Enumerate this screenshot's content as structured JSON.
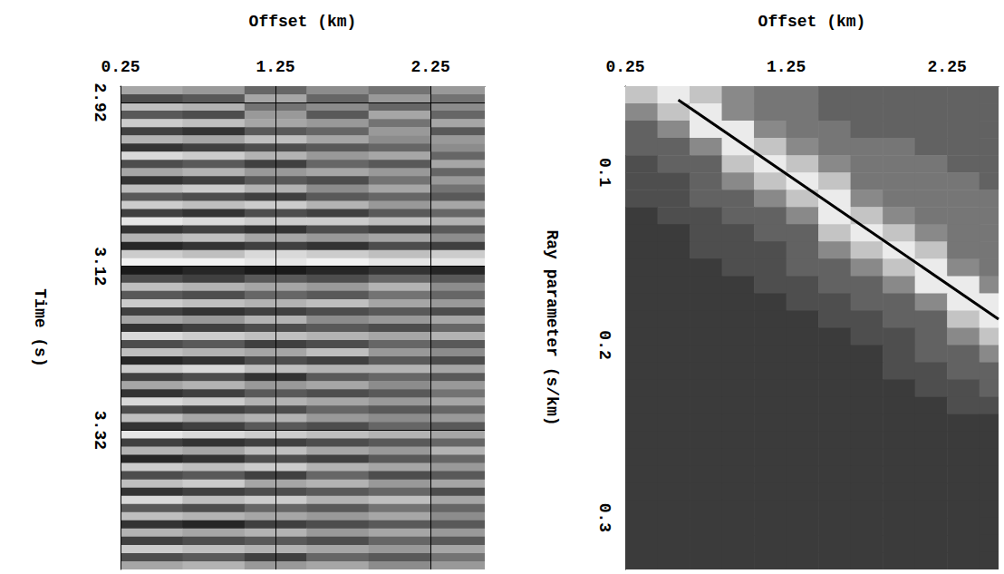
{
  "chart_data": [
    {
      "type": "heatmap",
      "x_label": "Offset (km)",
      "y_label": "Time (s)",
      "xlim": [
        0.25,
        2.6
      ],
      "xticks": [
        0.25,
        1.25,
        2.25
      ],
      "ylim": [
        2.9,
        3.49
      ],
      "yticks": [
        2.92,
        3.12,
        3.32
      ],
      "grid": true,
      "cells": {
        "vrange": [
          -10,
          10
        ],
        "x_edges": [
          0.25,
          0.65,
          1.05,
          1.45,
          1.85,
          2.25,
          2.6
        ],
        "y_edges": [
          2.9,
          2.91,
          2.92,
          2.93,
          2.94,
          2.95,
          2.96,
          2.97,
          2.98,
          2.99,
          3.0,
          3.01,
          3.02,
          3.03,
          3.04,
          3.05,
          3.06,
          3.07,
          3.08,
          3.09,
          3.1,
          3.11,
          3.12,
          3.13,
          3.14,
          3.15,
          3.16,
          3.17,
          3.18,
          3.19,
          3.2,
          3.21,
          3.22,
          3.23,
          3.24,
          3.25,
          3.26,
          3.27,
          3.28,
          3.29,
          3.3,
          3.31,
          3.32,
          3.33,
          3.34,
          3.35,
          3.36,
          3.37,
          3.38,
          3.39,
          3.4,
          3.41,
          3.42,
          3.43,
          3.44,
          3.45,
          3.46,
          3.47,
          3.48,
          3.49
        ],
        "values": [
          [
            3,
            2,
            -2,
            1,
            -1,
            2
          ],
          [
            -4,
            -3,
            3,
            -2,
            2,
            -1
          ],
          [
            5,
            4,
            -1,
            1,
            -2,
            1
          ],
          [
            -3,
            -4,
            2,
            -3,
            3,
            -2
          ],
          [
            6,
            5,
            3,
            2,
            -1,
            3
          ],
          [
            -5,
            -6,
            -3,
            -2,
            2,
            -3
          ],
          [
            4,
            3,
            5,
            3,
            1,
            2
          ],
          [
            -6,
            -5,
            -4,
            -3,
            -2,
            1
          ],
          [
            7,
            6,
            4,
            2,
            3,
            -2
          ],
          [
            -4,
            -3,
            -5,
            -2,
            -3,
            3
          ],
          [
            3,
            4,
            2,
            3,
            2,
            -2
          ],
          [
            -6,
            -5,
            -3,
            -4,
            -1,
            2
          ],
          [
            5,
            6,
            4,
            1,
            3,
            -1
          ],
          [
            -3,
            -4,
            -5,
            -3,
            -2,
            -3
          ],
          [
            6,
            5,
            6,
            4,
            2,
            3
          ],
          [
            -5,
            -6,
            -4,
            -5,
            -3,
            -2
          ],
          [
            8,
            7,
            6,
            6,
            5,
            4
          ],
          [
            -6,
            -5,
            -6,
            -4,
            -5,
            -3
          ],
          [
            4,
            5,
            3,
            2,
            3,
            1
          ],
          [
            -7,
            -6,
            -5,
            -6,
            -4,
            -5
          ],
          [
            6,
            5,
            7,
            6,
            5,
            6
          ],
          [
            9,
            9,
            8,
            9,
            8,
            8
          ],
          [
            -8,
            -7,
            -8,
            -7,
            -6,
            -7
          ],
          [
            -4,
            -5,
            -3,
            -4,
            -2,
            -3
          ],
          [
            5,
            4,
            3,
            2,
            4,
            1
          ],
          [
            -3,
            -4,
            -2,
            -3,
            -1,
            -2
          ],
          [
            6,
            5,
            4,
            5,
            3,
            2
          ],
          [
            -5,
            -6,
            -5,
            -4,
            -3,
            -4
          ],
          [
            3,
            2,
            4,
            1,
            2,
            3
          ],
          [
            -6,
            -5,
            -4,
            -3,
            -4,
            -2
          ],
          [
            7,
            6,
            5,
            4,
            3,
            4
          ],
          [
            -4,
            -3,
            -5,
            -4,
            -2,
            -3
          ],
          [
            5,
            4,
            3,
            5,
            2,
            1
          ],
          [
            -7,
            -6,
            -4,
            -5,
            -3,
            -4
          ],
          [
            6,
            7,
            5,
            4,
            4,
            3
          ],
          [
            -5,
            -4,
            -6,
            -3,
            -2,
            -3
          ],
          [
            3,
            4,
            2,
            3,
            1,
            2
          ],
          [
            -6,
            -5,
            -3,
            -4,
            -3,
            -1
          ],
          [
            7,
            6,
            4,
            3,
            2,
            3
          ],
          [
            -4,
            -5,
            -4,
            -2,
            -3,
            -2
          ],
          [
            5,
            3,
            4,
            2,
            1,
            2
          ],
          [
            -6,
            -5,
            -3,
            -4,
            -2,
            -3
          ],
          [
            8,
            7,
            6,
            5,
            4,
            3
          ],
          [
            -5,
            -6,
            -5,
            -4,
            -3,
            -2
          ],
          [
            4,
            3,
            5,
            3,
            2,
            4
          ],
          [
            -7,
            -6,
            -4,
            -5,
            -3,
            -2
          ],
          [
            6,
            5,
            6,
            4,
            3,
            2
          ],
          [
            -4,
            -3,
            -5,
            -2,
            -4,
            -3
          ],
          [
            5,
            6,
            3,
            4,
            2,
            3
          ],
          [
            -6,
            -5,
            -4,
            -3,
            -2,
            -4
          ],
          [
            7,
            5,
            6,
            4,
            5,
            3
          ],
          [
            -3,
            -4,
            -2,
            -3,
            -1,
            -2
          ],
          [
            5,
            4,
            3,
            2,
            3,
            1
          ],
          [
            -6,
            -7,
            -5,
            -4,
            -3,
            -3
          ],
          [
            4,
            3,
            4,
            2,
            3,
            2
          ],
          [
            -5,
            -4,
            -3,
            -4,
            -2,
            -3
          ],
          [
            6,
            5,
            4,
            3,
            2,
            3
          ],
          [
            -4,
            -3,
            -5,
            -2,
            -3,
            -1
          ],
          [
            3,
            4,
            2,
            3,
            1,
            2
          ]
        ]
      }
    },
    {
      "type": "heatmap",
      "x_label": "Offset (km)",
      "y_label": "Ray parameter (s/km)",
      "xlim": [
        0.25,
        2.57
      ],
      "xticks": [
        0.25,
        1.25,
        2.25
      ],
      "ylim": [
        0.05,
        0.33
      ],
      "yticks": [
        0.1,
        0.2,
        0.3
      ],
      "grid": false,
      "cells": {
        "vrange": [
          -3,
          10
        ],
        "x_edges": [
          0.25,
          0.45,
          0.65,
          0.85,
          1.05,
          1.25,
          1.45,
          1.65,
          1.85,
          2.05,
          2.25,
          2.45,
          2.57
        ],
        "y_edges": [
          0.05,
          0.06,
          0.07,
          0.08,
          0.09,
          0.1,
          0.11,
          0.12,
          0.13,
          0.14,
          0.15,
          0.16,
          0.17,
          0.18,
          0.19,
          0.2,
          0.21,
          0.22,
          0.23,
          0.24,
          0.25,
          0.26,
          0.27,
          0.28,
          0.29,
          0.3,
          0.31,
          0.32,
          0.33
        ],
        "values": [
          [
            7,
            9,
            7,
            4,
            3,
            3,
            2,
            2,
            2,
            2,
            2,
            2
          ],
          [
            4,
            7,
            9,
            4,
            3,
            3,
            2,
            2,
            2,
            2,
            2,
            2
          ],
          [
            2,
            4,
            9,
            9,
            4,
            3,
            3,
            2,
            2,
            2,
            2,
            2
          ],
          [
            2,
            2,
            4,
            9,
            7,
            4,
            3,
            3,
            3,
            2,
            2,
            2
          ],
          [
            1,
            2,
            2,
            7,
            9,
            7,
            4,
            3,
            3,
            3,
            2,
            2
          ],
          [
            1,
            1,
            2,
            4,
            7,
            9,
            7,
            3,
            3,
            3,
            3,
            2
          ],
          [
            1,
            1,
            2,
            2,
            4,
            7,
            9,
            4,
            3,
            3,
            3,
            3
          ],
          [
            0,
            1,
            1,
            2,
            2,
            4,
            9,
            7,
            4,
            3,
            3,
            3
          ],
          [
            0,
            0,
            1,
            1,
            2,
            2,
            7,
            9,
            7,
            4,
            3,
            3
          ],
          [
            0,
            0,
            1,
            1,
            1,
            2,
            4,
            7,
            9,
            7,
            3,
            3
          ],
          [
            0,
            0,
            0,
            1,
            1,
            2,
            2,
            4,
            7,
            9,
            4,
            3
          ],
          [
            0,
            0,
            0,
            0,
            1,
            1,
            2,
            2,
            4,
            9,
            9,
            4
          ],
          [
            0,
            0,
            0,
            0,
            0,
            1,
            1,
            2,
            2,
            4,
            9,
            9
          ],
          [
            0,
            0,
            0,
            0,
            0,
            0,
            1,
            1,
            2,
            2,
            7,
            9
          ],
          [
            0,
            0,
            0,
            0,
            0,
            0,
            0,
            1,
            1,
            2,
            4,
            7
          ],
          [
            0,
            0,
            0,
            0,
            0,
            0,
            0,
            0,
            1,
            2,
            2,
            4
          ],
          [
            0,
            0,
            0,
            0,
            0,
            0,
            0,
            0,
            1,
            1,
            2,
            2
          ],
          [
            0,
            0,
            0,
            0,
            0,
            0,
            0,
            0,
            0,
            1,
            1,
            2
          ],
          [
            0,
            0,
            0,
            0,
            0,
            0,
            0,
            0,
            0,
            0,
            1,
            1
          ],
          [
            0,
            0,
            0,
            0,
            0,
            0,
            0,
            0,
            0,
            0,
            0,
            0
          ],
          [
            0,
            0,
            0,
            0,
            0,
            0,
            0,
            0,
            0,
            0,
            0,
            0
          ],
          [
            0,
            0,
            0,
            0,
            0,
            0,
            0,
            0,
            0,
            0,
            0,
            0
          ],
          [
            0,
            0,
            0,
            0,
            0,
            0,
            0,
            0,
            0,
            0,
            0,
            0
          ],
          [
            0,
            0,
            0,
            0,
            0,
            0,
            0,
            0,
            0,
            0,
            0,
            0
          ],
          [
            0,
            0,
            0,
            0,
            0,
            0,
            0,
            0,
            0,
            0,
            0,
            0
          ],
          [
            0,
            0,
            0,
            0,
            0,
            0,
            0,
            0,
            0,
            0,
            0,
            0
          ],
          [
            0,
            0,
            0,
            0,
            0,
            0,
            0,
            0,
            0,
            0,
            0,
            0
          ],
          [
            0,
            0,
            0,
            0,
            0,
            0,
            0,
            0,
            0,
            0,
            0,
            0
          ]
        ]
      },
      "line": {
        "x": [
          0.58,
          2.57
        ],
        "y": [
          0.058,
          0.185
        ],
        "color": "#000000"
      }
    }
  ]
}
